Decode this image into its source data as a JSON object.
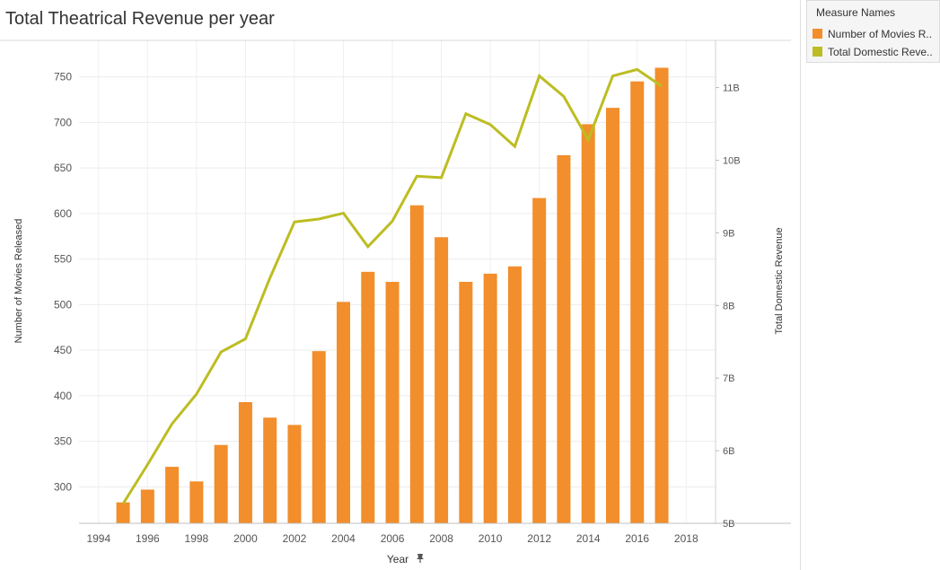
{
  "title": "Total Theatrical Revenue per year",
  "legend": {
    "title": "Measure Names",
    "items": [
      {
        "label": "Number of Movies R..",
        "color": "#f28e2b"
      },
      {
        "label": "Total  Domestic Reve..",
        "color": "#bcbd22"
      }
    ]
  },
  "chart_data": {
    "type": "bar",
    "xlabel": "Year",
    "ylabel": "Number of Movies Released",
    "ylabel_right": "Total  Domestic Revenue",
    "x_ticks": [
      "1994",
      "1996",
      "1998",
      "2000",
      "2002",
      "2004",
      "2006",
      "2008",
      "2010",
      "2012",
      "2014",
      "2016",
      "2018"
    ],
    "y_ticks": [
      "300",
      "350",
      "400",
      "450",
      "500",
      "550",
      "600",
      "650",
      "700",
      "750"
    ],
    "y2_ticks": [
      "5B",
      "6B",
      "7B",
      "8B",
      "9B",
      "10B",
      "11B"
    ],
    "ylim": [
      260,
      790
    ],
    "y2lim": [
      5.0,
      11.65
    ],
    "grid": true,
    "legend_position": "right",
    "years": [
      1995,
      1996,
      1997,
      1998,
      1999,
      2000,
      2001,
      2002,
      2003,
      2004,
      2005,
      2006,
      2007,
      2008,
      2009,
      2010,
      2011,
      2012,
      2013,
      2014,
      2015,
      2016,
      2017
    ],
    "series": [
      {
        "name": "Number of Movies R..",
        "type": "bar",
        "color": "#f28e2b",
        "values": [
          283,
          297,
          322,
          306,
          346,
          393,
          376,
          368,
          449,
          503,
          536,
          525,
          609,
          574,
          525,
          534,
          542,
          617,
          664,
          698,
          716,
          745,
          760
        ]
      },
      {
        "name": "Total  Domestic Reve..",
        "type": "line",
        "axis": "right",
        "color": "#bcbd22",
        "values": [
          5.27,
          5.81,
          6.37,
          6.78,
          7.36,
          7.54,
          8.38,
          9.15,
          9.19,
          9.27,
          8.81,
          9.16,
          9.78,
          9.76,
          10.64,
          10.49,
          10.19,
          11.16,
          10.88,
          10.28,
          11.16,
          11.25,
          11.02
        ]
      }
    ]
  }
}
